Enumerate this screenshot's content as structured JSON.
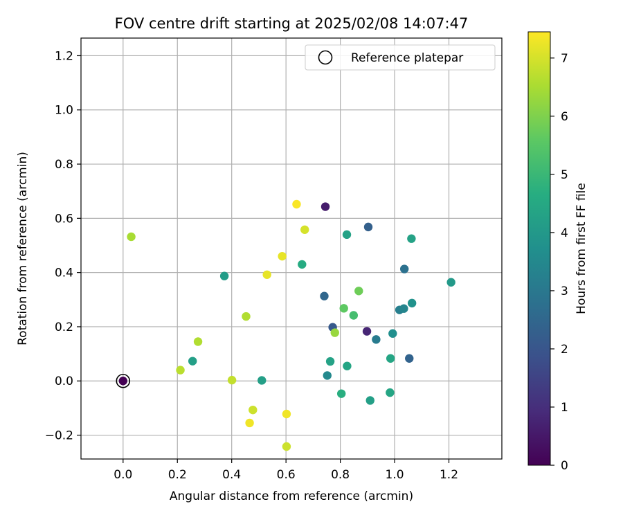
{
  "chart_data": {
    "type": "scatter",
    "title": "FOV centre drift starting at 2025/02/08 14:07:47",
    "xlabel": "Angular distance from reference (arcmin)",
    "ylabel": "Rotation from reference (arcmin)",
    "xlim": [
      -0.155,
      1.395
    ],
    "ylim": [
      -0.288,
      1.265
    ],
    "x_ticks": [
      0.0,
      0.2,
      0.4,
      0.6,
      0.8,
      1.0,
      1.2
    ],
    "x_tick_labels": [
      "0.0",
      "0.2",
      "0.4",
      "0.6",
      "0.8",
      "1.0",
      "1.2"
    ],
    "y_ticks": [
      -0.2,
      0.0,
      0.2,
      0.4,
      0.6,
      0.8,
      1.0,
      1.2
    ],
    "y_tick_labels": [
      "−0.2",
      "0.0",
      "0.2",
      "0.4",
      "0.6",
      "0.8",
      "1.0",
      "1.2"
    ],
    "grid": true,
    "legend": {
      "placement": "top-right",
      "entries": [
        {
          "label": "Reference platepar",
          "marker": "open-circle"
        }
      ]
    },
    "colorbar": {
      "label": "Hours from first FF file",
      "min": 0,
      "max": 7.45,
      "ticks": [
        0,
        1,
        2,
        3,
        4,
        5,
        6,
        7
      ],
      "colormap": "viridis"
    },
    "reference_point": {
      "x": 0.0,
      "y": 0.0
    },
    "points": [
      {
        "x": 0.0,
        "y": 0.0,
        "c": 0.0
      },
      {
        "x": 0.745,
        "y": 0.643,
        "c": 0.6
      },
      {
        "x": 0.898,
        "y": 0.183,
        "c": 0.8
      },
      {
        "x": 0.772,
        "y": 0.198,
        "c": 2.1
      },
      {
        "x": 0.903,
        "y": 0.568,
        "c": 2.3
      },
      {
        "x": 1.054,
        "y": 0.083,
        "c": 2.4
      },
      {
        "x": 0.741,
        "y": 0.313,
        "c": 2.5
      },
      {
        "x": 1.036,
        "y": 0.413,
        "c": 2.8
      },
      {
        "x": 0.932,
        "y": 0.153,
        "c": 3.1
      },
      {
        "x": 1.018,
        "y": 0.262,
        "c": 3.2
      },
      {
        "x": 1.034,
        "y": 0.267,
        "c": 3.4
      },
      {
        "x": 0.752,
        "y": 0.02,
        "c": 3.5
      },
      {
        "x": 0.993,
        "y": 0.175,
        "c": 3.7
      },
      {
        "x": 1.064,
        "y": 0.287,
        "c": 3.8
      },
      {
        "x": 1.208,
        "y": 0.364,
        "c": 4.0
      },
      {
        "x": 0.373,
        "y": 0.387,
        "c": 4.1
      },
      {
        "x": 0.511,
        "y": 0.002,
        "c": 4.2
      },
      {
        "x": 0.256,
        "y": 0.073,
        "c": 4.2
      },
      {
        "x": 0.91,
        "y": -0.072,
        "c": 4.2
      },
      {
        "x": 0.824,
        "y": 0.54,
        "c": 4.3
      },
      {
        "x": 0.763,
        "y": 0.072,
        "c": 4.3
      },
      {
        "x": 1.062,
        "y": 0.525,
        "c": 4.3
      },
      {
        "x": 0.983,
        "y": -0.043,
        "c": 4.4
      },
      {
        "x": 0.985,
        "y": 0.083,
        "c": 4.4
      },
      {
        "x": 0.825,
        "y": 0.055,
        "c": 4.4
      },
      {
        "x": 0.659,
        "y": 0.43,
        "c": 4.6
      },
      {
        "x": 0.804,
        "y": -0.047,
        "c": 4.7
      },
      {
        "x": 0.849,
        "y": 0.242,
        "c": 5.2
      },
      {
        "x": 0.813,
        "y": 0.268,
        "c": 5.6
      },
      {
        "x": 0.868,
        "y": 0.332,
        "c": 5.8
      },
      {
        "x": 0.78,
        "y": 0.178,
        "c": 6.3
      },
      {
        "x": 0.03,
        "y": 0.532,
        "c": 6.5
      },
      {
        "x": 0.453,
        "y": 0.238,
        "c": 6.6
      },
      {
        "x": 0.276,
        "y": 0.145,
        "c": 6.6
      },
      {
        "x": 0.211,
        "y": 0.04,
        "c": 6.7
      },
      {
        "x": 0.401,
        "y": 0.003,
        "c": 6.8
      },
      {
        "x": 0.478,
        "y": -0.107,
        "c": 6.9
      },
      {
        "x": 0.602,
        "y": -0.242,
        "c": 6.9
      },
      {
        "x": 0.669,
        "y": 0.558,
        "c": 7.0
      },
      {
        "x": 0.53,
        "y": 0.392,
        "c": 7.2
      },
      {
        "x": 0.586,
        "y": 0.46,
        "c": 7.2
      },
      {
        "x": 0.466,
        "y": -0.155,
        "c": 7.3
      },
      {
        "x": 0.602,
        "y": -0.122,
        "c": 7.3
      },
      {
        "x": 0.639,
        "y": 0.652,
        "c": 7.4
      }
    ]
  }
}
